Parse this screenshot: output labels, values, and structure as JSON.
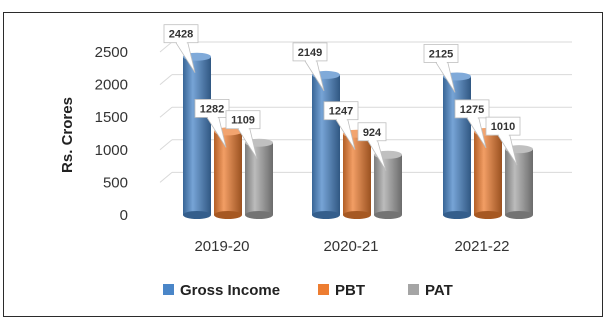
{
  "chart_data": {
    "type": "bar",
    "ylabel": "Rs. Crores",
    "xlabel": "",
    "ylim": [
      0,
      2500
    ],
    "yticks": [
      "0",
      "500",
      "1000",
      "1500",
      "2000",
      "2500"
    ],
    "categories": [
      "2019-20",
      "2020-21",
      "2021-22"
    ],
    "series": [
      {
        "name": "Gross Income",
        "values": [
          2428,
          2149,
          2125
        ],
        "labels": [
          "2428",
          "2149",
          "2125"
        ],
        "color": "#4a86c8"
      },
      {
        "name": "PBT",
        "values": [
          1282,
          1247,
          1275
        ],
        "labels": [
          "1282",
          "1247",
          "1275"
        ],
        "color": "#ed7d31"
      },
      {
        "name": "PAT",
        "values": [
          1109,
          924,
          1010
        ],
        "labels": [
          "1109",
          "924",
          "1010"
        ],
        "color": "#a5a5a5"
      }
    ],
    "grid": true,
    "legend_position": "bottom",
    "style": "3d-cylinder"
  }
}
